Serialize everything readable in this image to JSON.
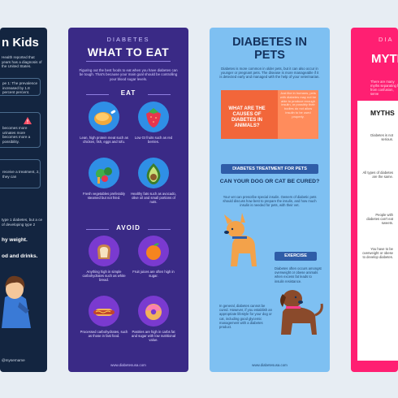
{
  "card1": {
    "title_partial": "n Kids",
    "intro": "Health reported that years has a diagnosis of the United States.",
    "box1": "pe 1: The prevalence increased by 1.8 percent percent.",
    "box2": "becomes more urinates more becomes more a possibility.",
    "box3": "receive a treatment, 2, they can",
    "mid": "type 1 diabetes, but a ce of developing type 2",
    "lead1": "hy weight.",
    "lead2": "od and drinks.",
    "footer": "@mysername"
  },
  "card2": {
    "kicker": "DIABETES",
    "title": "WHAT TO EAT",
    "intro": "Figuring out the best foods to eat when you have diabetes can be tough. That's because your main goal should be controlling your blood sugar levels.",
    "eat_heading": "EAT",
    "eat_items": [
      {
        "icon": "chicken-icon",
        "caption": "Lean, high protein meat such as chicken, fish, eggs and tofu."
      },
      {
        "icon": "strawberry-icon",
        "caption": "Low GI fruits such as red berries."
      },
      {
        "icon": "vegetables-icon",
        "caption": "Fresh vegetables preferably steamed but not fried."
      },
      {
        "icon": "avocado-icon",
        "caption": "Healthy fats such as avocado, olive oil and small portions of nuts."
      }
    ],
    "avoid_heading": "AVOID",
    "avoid_items": [
      {
        "icon": "bread-icon",
        "caption": "Anything high in simple carbohydrates such as white bread."
      },
      {
        "icon": "orange-icon",
        "caption": "Fruit juices are often high in sugar."
      },
      {
        "icon": "hotdog-icon",
        "caption": "Processed carbohydrates, such as those in fast food."
      },
      {
        "icon": "donut-icon",
        "caption": "Pastries are high in carbs fat and sugar with low nutritional value."
      }
    ],
    "url": "www.diabetesusa.com"
  },
  "card3": {
    "title_line1": "DIABETES IN",
    "title_line2": "PETS",
    "intro": "Diabetes is more common in older pets, but it can also occur in younger or pregnant pets. The disease is more manageable if it is detected early and managed with the help of your veterinarian.",
    "causes_q": "WHAT ARE THE CAUSES OF DIABETES IN ANIMALS?",
    "causes_a": "Just like in humans, pets with diabetes may not be able to produce enough insulin, or possibly their bodies do not allow insulin to be used properly.",
    "treatment": "DIABETES TREATMENT FOR PETS",
    "cured_q": "CAN YOUR DOG OR CAT BE CURED?",
    "cured_a": "Your vet can prescribe special insulin. Owners of diabetic pets should discuss how best to prepare the insulin, and how much insulin is needed for pets, with their vet.",
    "exercise": "EXERCISE",
    "exercise_text": "Diabetes often occurs amongst overweight or obese animals when excess fat leads to insulin resistance.",
    "general": "In general, diabetes cannot be cured. However, if you establish an appropriate lifestyle for your dog or cat, including good glycemic management with a diabetes product.",
    "url": "www.diabetesusa.com"
  },
  "card4": {
    "kicker": "DIA",
    "big": "MYTH",
    "intro": "There are many myths separating fact from confusion, serve",
    "panel_head": "MYTHS",
    "myths": [
      "Diabetes is not serious.",
      "All types of diabetes are the same.",
      "People with diabetes can't eat sweets.",
      "You have to be overweight or obese to develop diabetes."
    ]
  }
}
